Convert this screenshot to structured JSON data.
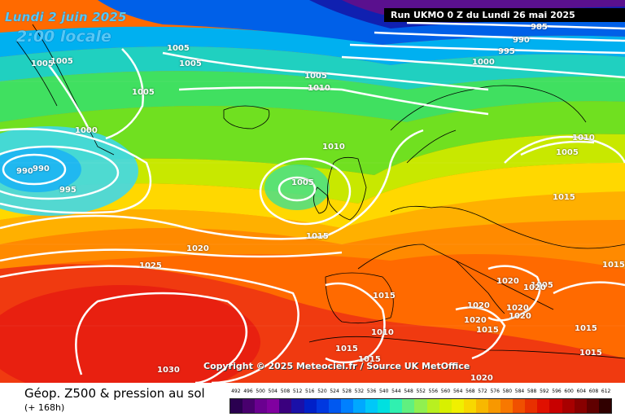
{
  "header": {
    "date_line": "Lundi 2 juin 2025",
    "time_line": "2:00 locale",
    "run_info": "Run UKMO 0 Z du Lundi 26 mai 2025"
  },
  "copyright": "Copyright © 2025 Meteociel.fr / Source UK MetOffice",
  "footer": {
    "product_title": "Géop. Z500 & pression au sol",
    "lead_time": "(+ 168h)"
  },
  "isobar_labels": [
    "985",
    "990",
    "995",
    "1000",
    "1005",
    "1005",
    "1005",
    "1005",
    "1005",
    "1005",
    "1005",
    "1000",
    "990",
    "990",
    "995",
    "1010",
    "1010",
    "1005",
    "1010",
    "1005",
    "1015",
    "1020",
    "1025",
    "1015",
    "1015",
    "1020",
    "1020",
    "1020",
    "1020",
    "1020",
    "1020",
    "1015",
    "1015",
    "1015",
    "1010",
    "1015",
    "1015",
    "1020",
    "1030",
    "1015"
  ],
  "scale": {
    "labels": [
      "492",
      "496",
      "500",
      "504",
      "508",
      "512",
      "516",
      "520",
      "524",
      "528",
      "532",
      "536",
      "540",
      "544",
      "548",
      "552",
      "556",
      "560",
      "564",
      "568",
      "572",
      "576",
      "580",
      "584",
      "588",
      "592",
      "596",
      "600",
      "604",
      "608",
      "612"
    ],
    "colors": [
      "#2a0050",
      "#48006e",
      "#6a0090",
      "#8000a0",
      "#3a007e",
      "#1a10a8",
      "#0020c8",
      "#0038e0",
      "#0058f0",
      "#0080ff",
      "#00a8ff",
      "#00c8f8",
      "#00e0e0",
      "#30f0b0",
      "#60f080",
      "#90f050",
      "#b8f020",
      "#d8f000",
      "#f0f000",
      "#f8d800",
      "#f8b800",
      "#f89800",
      "#f87800",
      "#f05000",
      "#e83000",
      "#e01000",
      "#c80000",
      "#a80000",
      "#880000",
      "#600000",
      "#300000"
    ]
  }
}
